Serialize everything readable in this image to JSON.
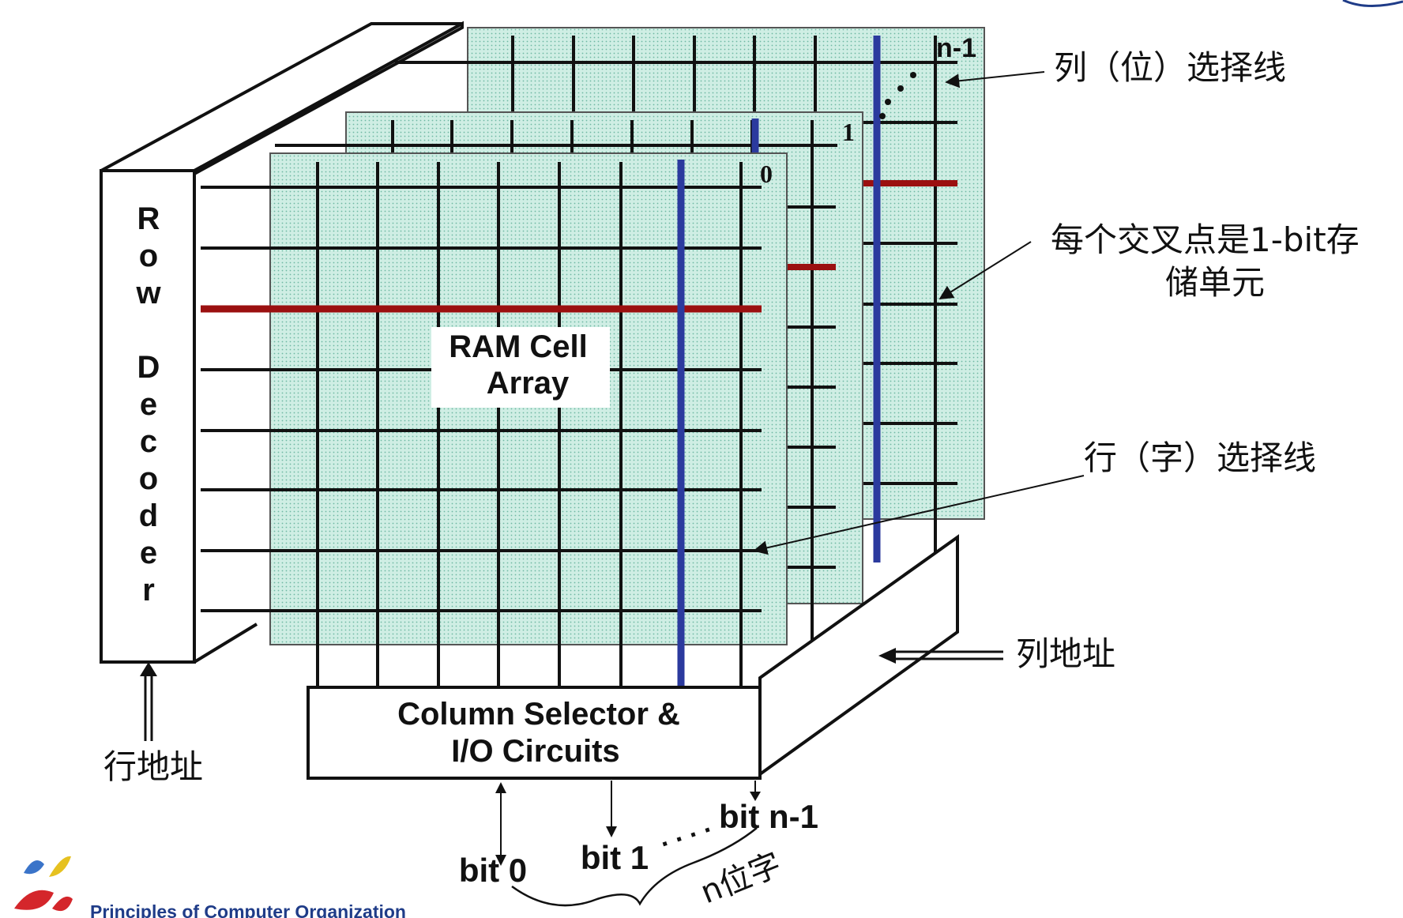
{
  "diagram": {
    "row_decoder_letters": [
      "R",
      "o",
      "w",
      "D",
      "e",
      "c",
      "o",
      "d",
      "e",
      "r"
    ],
    "ram_cell_array": {
      "line1": "RAM Cell",
      "line2": "Array"
    },
    "column_selector": {
      "line1": "Column Selector &",
      "line2": "I/O Circuits"
    },
    "plane_labels": {
      "plane0": "0",
      "plane1": "1",
      "planeN": "n-1"
    },
    "callouts": {
      "column_select_line": "列（位）选择线",
      "crosspoint_line1": "每个交叉点是1-bit存",
      "crosspoint_line2": "储单元",
      "row_select_line": "行（字）选择线",
      "column_address": "列地址",
      "row_address": "行地址"
    },
    "bits": {
      "bit0": "bit 0",
      "bit1": "bit 1",
      "bitN": "bit n-1",
      "ellipsis": ". . . .",
      "word": "n位字"
    },
    "footer": "Principles of Computer Organization"
  },
  "colors": {
    "grid_fill": "#cfeee4",
    "grid_dot": "#6fb9a3",
    "line": "#111111",
    "row_select": "#9b1010",
    "column_select": "#2b3a9e",
    "logo_blue": "#3a74c9",
    "logo_yellow": "#e6c120",
    "logo_red": "#d4262b"
  }
}
